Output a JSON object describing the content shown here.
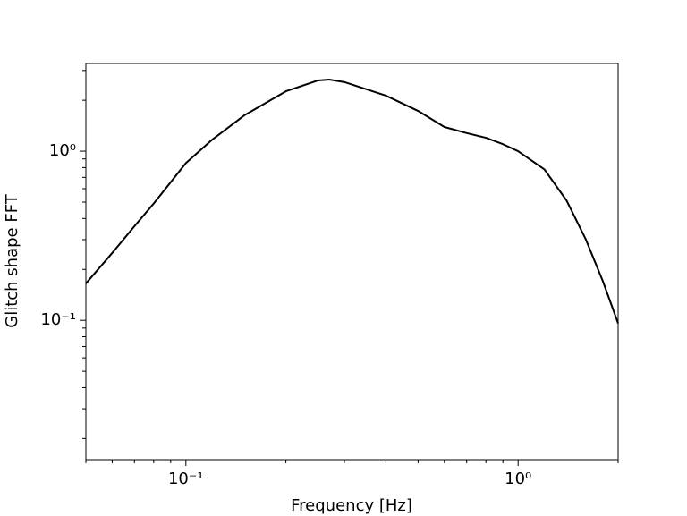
{
  "chart_data": {
    "type": "line",
    "x_label": "Frequency [Hz]",
    "y_label": "Glitch shape FFT",
    "log_x": true,
    "log_y": true,
    "color": "#000000",
    "x": [
      0.05,
      0.06,
      0.07,
      0.08,
      0.1,
      0.12,
      0.15,
      0.2,
      0.25,
      0.27,
      0.3,
      0.4,
      0.5,
      0.6,
      0.7,
      0.8,
      0.9,
      1.0,
      1.2,
      1.4,
      1.6,
      1.8,
      2.0
    ],
    "values": [
      0.165,
      0.25,
      0.36,
      0.49,
      0.85,
      1.17,
      1.63,
      2.26,
      2.62,
      2.65,
      2.56,
      2.13,
      1.73,
      1.39,
      1.28,
      1.2,
      1.1,
      1.0,
      0.78,
      0.51,
      0.3,
      0.17,
      0.096
    ],
    "xlim": [
      0.05,
      2
    ],
    "ylim": [
      0.015,
      3.3
    ],
    "xticks": [
      {
        "value": 0.1,
        "label": "10⁻¹"
      },
      {
        "value": 1,
        "label": "10⁰"
      }
    ],
    "yticks": [
      {
        "value": 0.1,
        "label": "10⁻¹"
      },
      {
        "value": 1,
        "label": "10⁰"
      }
    ],
    "x_minor_ticks": [
      0.05,
      0.06,
      0.07,
      0.08,
      0.09,
      0.2,
      0.3,
      0.4,
      0.5,
      0.6,
      0.7,
      0.8,
      0.9,
      2
    ],
    "y_minor_ticks": [
      0.02,
      0.03,
      0.04,
      0.05,
      0.06,
      0.07,
      0.08,
      0.09,
      0.2,
      0.3,
      0.4,
      0.5,
      0.6,
      0.7,
      0.8,
      0.9,
      2,
      3
    ]
  }
}
